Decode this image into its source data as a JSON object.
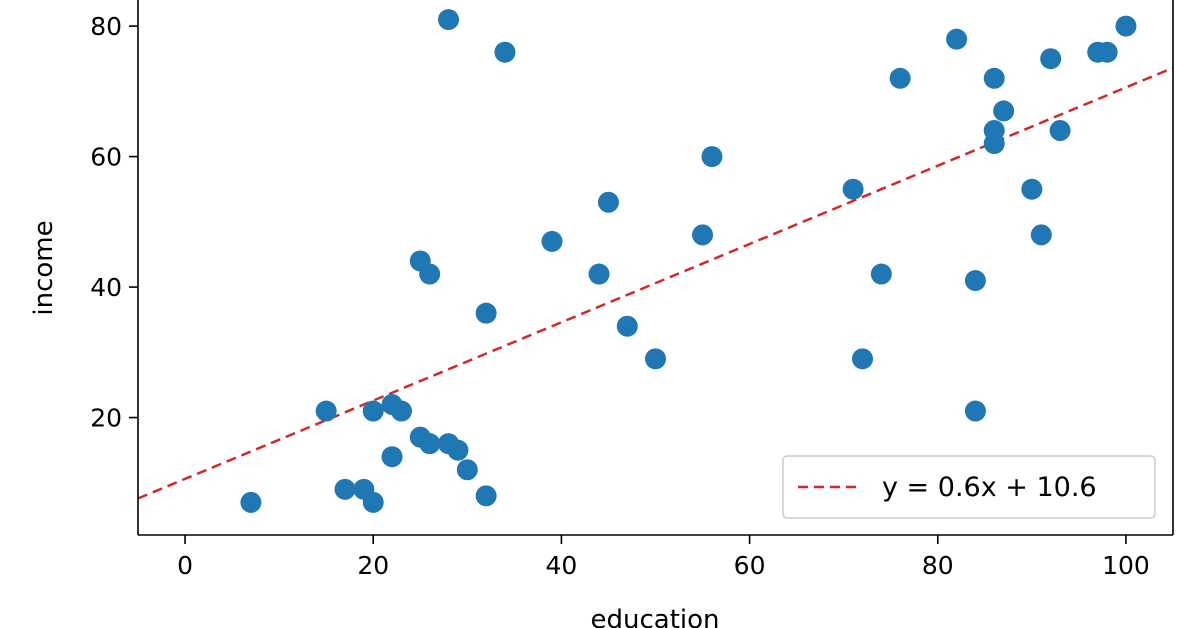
{
  "chart_data": {
    "type": "scatter",
    "title": "",
    "xlabel": "education",
    "ylabel": "income",
    "xlim": [
      -5,
      105
    ],
    "ylim": [
      2,
      84
    ],
    "xticks": [
      0,
      20,
      40,
      60,
      80,
      100
    ],
    "yticks": [
      20,
      40,
      60,
      80
    ],
    "grid": false,
    "legend_position": "bottom-right",
    "point_color": "#1f77b4",
    "line_color": "#d62728",
    "series": [
      {
        "name": "",
        "points": [
          [
            7,
            7
          ],
          [
            15,
            21
          ],
          [
            17,
            9
          ],
          [
            19,
            9
          ],
          [
            20,
            7
          ],
          [
            20,
            21
          ],
          [
            22,
            22
          ],
          [
            23,
            21
          ],
          [
            22,
            14
          ],
          [
            25,
            17
          ],
          [
            26,
            16
          ],
          [
            28,
            16
          ],
          [
            29,
            15
          ],
          [
            30,
            12
          ],
          [
            32,
            8
          ],
          [
            25,
            44
          ],
          [
            26,
            42
          ],
          [
            28,
            81
          ],
          [
            32,
            36
          ],
          [
            34,
            76
          ],
          [
            39,
            47
          ],
          [
            44,
            42
          ],
          [
            45,
            53
          ],
          [
            47,
            34
          ],
          [
            50,
            29
          ],
          [
            55,
            48
          ],
          [
            56,
            60
          ],
          [
            71,
            55
          ],
          [
            72,
            29
          ],
          [
            74,
            42
          ],
          [
            76,
            72
          ],
          [
            82,
            78
          ],
          [
            84,
            41
          ],
          [
            84,
            21
          ],
          [
            86,
            72
          ],
          [
            86,
            64
          ],
          [
            86,
            62
          ],
          [
            87,
            67
          ],
          [
            90,
            55
          ],
          [
            91,
            48
          ],
          [
            92,
            75
          ],
          [
            93,
            64
          ],
          [
            97,
            76
          ],
          [
            98,
            76
          ],
          [
            100,
            80
          ]
        ]
      }
    ],
    "fit_line": {
      "label": "y = 0.6x + 10.6",
      "slope": 0.6,
      "intercept": 10.6,
      "style": "dashed"
    }
  }
}
